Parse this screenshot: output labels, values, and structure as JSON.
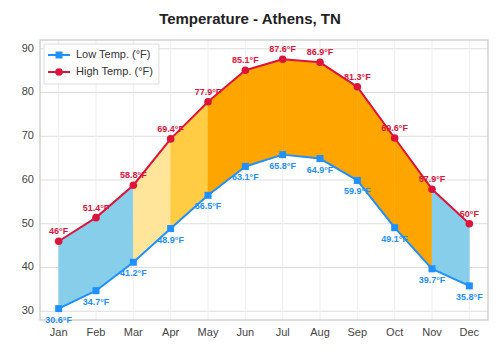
{
  "chart_data": {
    "type": "line",
    "title": "Temperature - Athens, TN",
    "categories": [
      "Jan",
      "Feb",
      "Mar",
      "Apr",
      "May",
      "Jun",
      "Jul",
      "Aug",
      "Sep",
      "Oct",
      "Nov",
      "Dec"
    ],
    "series": [
      {
        "name": "Low Temp. (°F)",
        "color": "#1e90ff",
        "marker": "square",
        "values": [
          30.6,
          34.7,
          41.2,
          48.9,
          56.5,
          63.1,
          65.8,
          64.9,
          59.9,
          49.1,
          39.7,
          35.8
        ],
        "value_labels": [
          "30.6°F",
          "34.7°F",
          "41.2°F",
          "48.9°F",
          "56.5°F",
          "63.1°F",
          "65.8°F",
          "64.9°F",
          "59.9°F",
          "49.1°F",
          "39.7°F",
          "35.8°F"
        ]
      },
      {
        "name": "High Temp. (°F)",
        "color": "#dc143c",
        "marker": "circle",
        "values": [
          46.0,
          51.4,
          58.8,
          69.4,
          77.9,
          85.1,
          87.6,
          86.9,
          81.3,
          69.6,
          57.9,
          50.0
        ],
        "value_labels": [
          "46°F",
          "51.4°F",
          "58.8°F",
          "69.4°F",
          "77.9°F",
          "85.1°F",
          "87.6°F",
          "86.9°F",
          "81.3°F",
          "69.6°F",
          "57.9°F",
          "50°F"
        ]
      }
    ],
    "colors": [
      "#87ceeb",
      "#87ceeb",
      "#ffe599",
      "#ffcc44",
      "#ffa500",
      "#ffa500",
      "#ffa500",
      "#ffa500",
      "#ffa500",
      "#ffa500",
      "#87ceeb"
    ],
    "ylim": [
      28,
      92
    ],
    "yticks": [
      30,
      40,
      50,
      60,
      70,
      80,
      90
    ],
    "grid": true,
    "legend": "upper left",
    "data_labels": true
  }
}
